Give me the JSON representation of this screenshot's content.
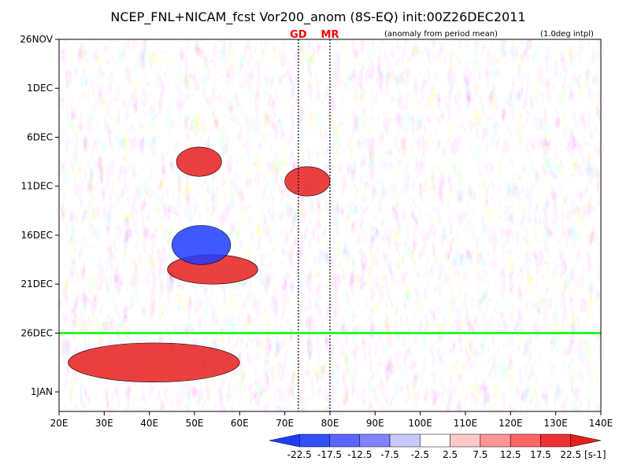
{
  "chart_data": {
    "type": "heatmap",
    "title": "NCEP_FNL+NICAM_fcst Vor200_anom (8S-EQ) init:00Z26DEC2011",
    "subtitle_left": "(anomaly from period mean)",
    "subtitle_right": "(1.0deg intpl)",
    "x_axis": {
      "unit": "longitude",
      "range": [
        20,
        140
      ],
      "ticks": [
        {
          "value": 20,
          "label": "20E"
        },
        {
          "value": 30,
          "label": "30E"
        },
        {
          "value": 40,
          "label": "40E"
        },
        {
          "value": 50,
          "label": "50E"
        },
        {
          "value": 60,
          "label": "60E"
        },
        {
          "value": 70,
          "label": "70E"
        },
        {
          "value": 80,
          "label": "80E"
        },
        {
          "value": 90,
          "label": "90E"
        },
        {
          "value": 100,
          "label": "100E"
        },
        {
          "value": 110,
          "label": "110E"
        },
        {
          "value": 120,
          "label": "120E"
        },
        {
          "value": 130,
          "label": "130E"
        },
        {
          "value": 140,
          "label": "140E"
        }
      ]
    },
    "y_axis": {
      "unit": "date",
      "range": [
        "2011-11-26",
        "2012-01-03"
      ],
      "direction": "top-to-bottom",
      "ticks": [
        {
          "value": "2011-11-26",
          "label": "26NOV"
        },
        {
          "value": "2011-12-01",
          "label": "1DEC"
        },
        {
          "value": "2011-12-06",
          "label": "6DEC"
        },
        {
          "value": "2011-12-11",
          "label": "11DEC"
        },
        {
          "value": "2011-12-16",
          "label": "16DEC"
        },
        {
          "value": "2011-12-21",
          "label": "21DEC"
        },
        {
          "value": "2011-12-26",
          "label": "26DEC"
        },
        {
          "value": "2012-01-01",
          "label": "1JAN"
        }
      ]
    },
    "reference_lines": [
      {
        "orientation": "vertical",
        "lon": 73,
        "label": "GD",
        "style": "dotted",
        "color": "#000000",
        "label_color": "#ff0000"
      },
      {
        "orientation": "vertical",
        "lon": 80,
        "label": "MR",
        "style": "dotted",
        "color": "#000000",
        "label_color": "#ff0000"
      },
      {
        "orientation": "horizontal",
        "date": "2011-12-26",
        "label": "init",
        "color": "#00ff00"
      }
    ],
    "colorbar": {
      "unit": "[s-1]",
      "levels": [
        -22.5,
        -17.5,
        -12.5,
        -7.5,
        -2.5,
        2.5,
        7.5,
        12.5,
        17.5,
        22.5
      ],
      "colors": [
        "#1e3cff",
        "#3250ff",
        "#5a64ff",
        "#8282ff",
        "#c8c8ff",
        "#ffffff",
        "#ffc8c8",
        "#ff9696",
        "#ff6464",
        "#f03232",
        "#e61e1e"
      ]
    },
    "features": [
      {
        "lon_range": [
          46,
          56
        ],
        "date_range": [
          "2011-12-07",
          "2011-12-10"
        ],
        "sign": "positive",
        "strength": "strong"
      },
      {
        "lon_range": [
          44,
          64
        ],
        "date_range": [
          "2011-12-18",
          "2011-12-21"
        ],
        "sign": "positive",
        "strength": "strong"
      },
      {
        "lon_range": [
          45,
          58
        ],
        "date_range": [
          "2011-12-15",
          "2011-12-19"
        ],
        "sign": "negative",
        "strength": "strong"
      },
      {
        "lon_range": [
          70,
          80
        ],
        "date_range": [
          "2011-12-09",
          "2011-12-12"
        ],
        "sign": "positive",
        "strength": "strong"
      },
      {
        "lon_range": [
          22,
          60
        ],
        "date_range": [
          "2011-12-27",
          "2011-12-31"
        ],
        "sign": "positive",
        "strength": "strong"
      }
    ],
    "grid": false
  }
}
